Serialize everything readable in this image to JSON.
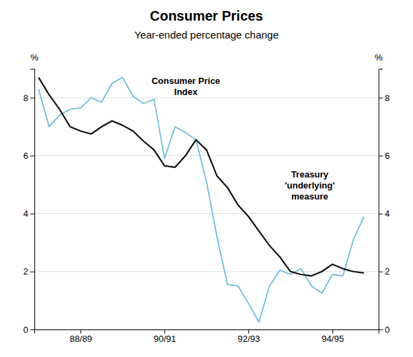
{
  "chart_data": {
    "type": "line",
    "title": "Consumer Prices",
    "subtitle": "Year-ended percentage change",
    "y_label": "%",
    "y2_label": "%",
    "x": [
      1987.5,
      1987.75,
      1988.0,
      1988.25,
      1988.5,
      1988.75,
      1989.0,
      1989.25,
      1989.5,
      1989.75,
      1990.0,
      1990.25,
      1990.5,
      1990.75,
      1991.0,
      1991.25,
      1991.5,
      1991.75,
      1992.0,
      1992.25,
      1992.5,
      1992.75,
      1993.0,
      1993.25,
      1993.5,
      1993.75,
      1994.0,
      1994.25,
      1994.5,
      1994.75,
      1995.0,
      1995.25
    ],
    "series": [
      {
        "color": "#6bbede",
        "values": [
          8.3,
          7.0,
          7.4,
          7.6,
          7.65,
          8.0,
          7.85,
          8.5,
          8.7,
          8.05,
          7.8,
          7.95,
          5.9,
          7.0,
          6.8,
          6.55,
          5.1,
          3.2,
          1.55,
          1.5,
          0.9,
          0.25,
          1.5,
          2.05,
          1.9,
          2.1,
          1.5,
          1.25,
          1.9,
          1.85,
          3.1,
          3.9
        ]
      },
      {
        "color": "#111111",
        "values": [
          8.7,
          8.1,
          7.6,
          7.0,
          6.85,
          6.75,
          7.0,
          7.2,
          7.05,
          6.85,
          6.5,
          6.2,
          5.65,
          5.6,
          6.0,
          6.55,
          6.2,
          5.3,
          4.9,
          4.3,
          3.9,
          3.4,
          2.9,
          2.5,
          2.0,
          1.9,
          1.85,
          2.0,
          2.25,
          2.1,
          2.0,
          1.95
        ]
      }
    ],
    "annotations": [
      {
        "text": "Consumer Price\nIndex"
      },
      {
        "text": "Treasury\n'underlying'\nmeasure"
      }
    ],
    "xlim": [
      1987.4,
      1995.6
    ],
    "xticks": [
      {
        "value": 1988.5,
        "label": "88/89"
      },
      {
        "value": 1990.5,
        "label": "90/91"
      },
      {
        "value": 1992.5,
        "label": "92/93"
      },
      {
        "value": 1994.5,
        "label": "94/95"
      }
    ],
    "ylim": [
      0,
      9
    ],
    "yticks": [
      0,
      2,
      4,
      6,
      8
    ],
    "y2lim": [
      0,
      9
    ],
    "y2ticks": [
      0,
      2,
      4,
      6,
      8
    ],
    "grid": true
  }
}
